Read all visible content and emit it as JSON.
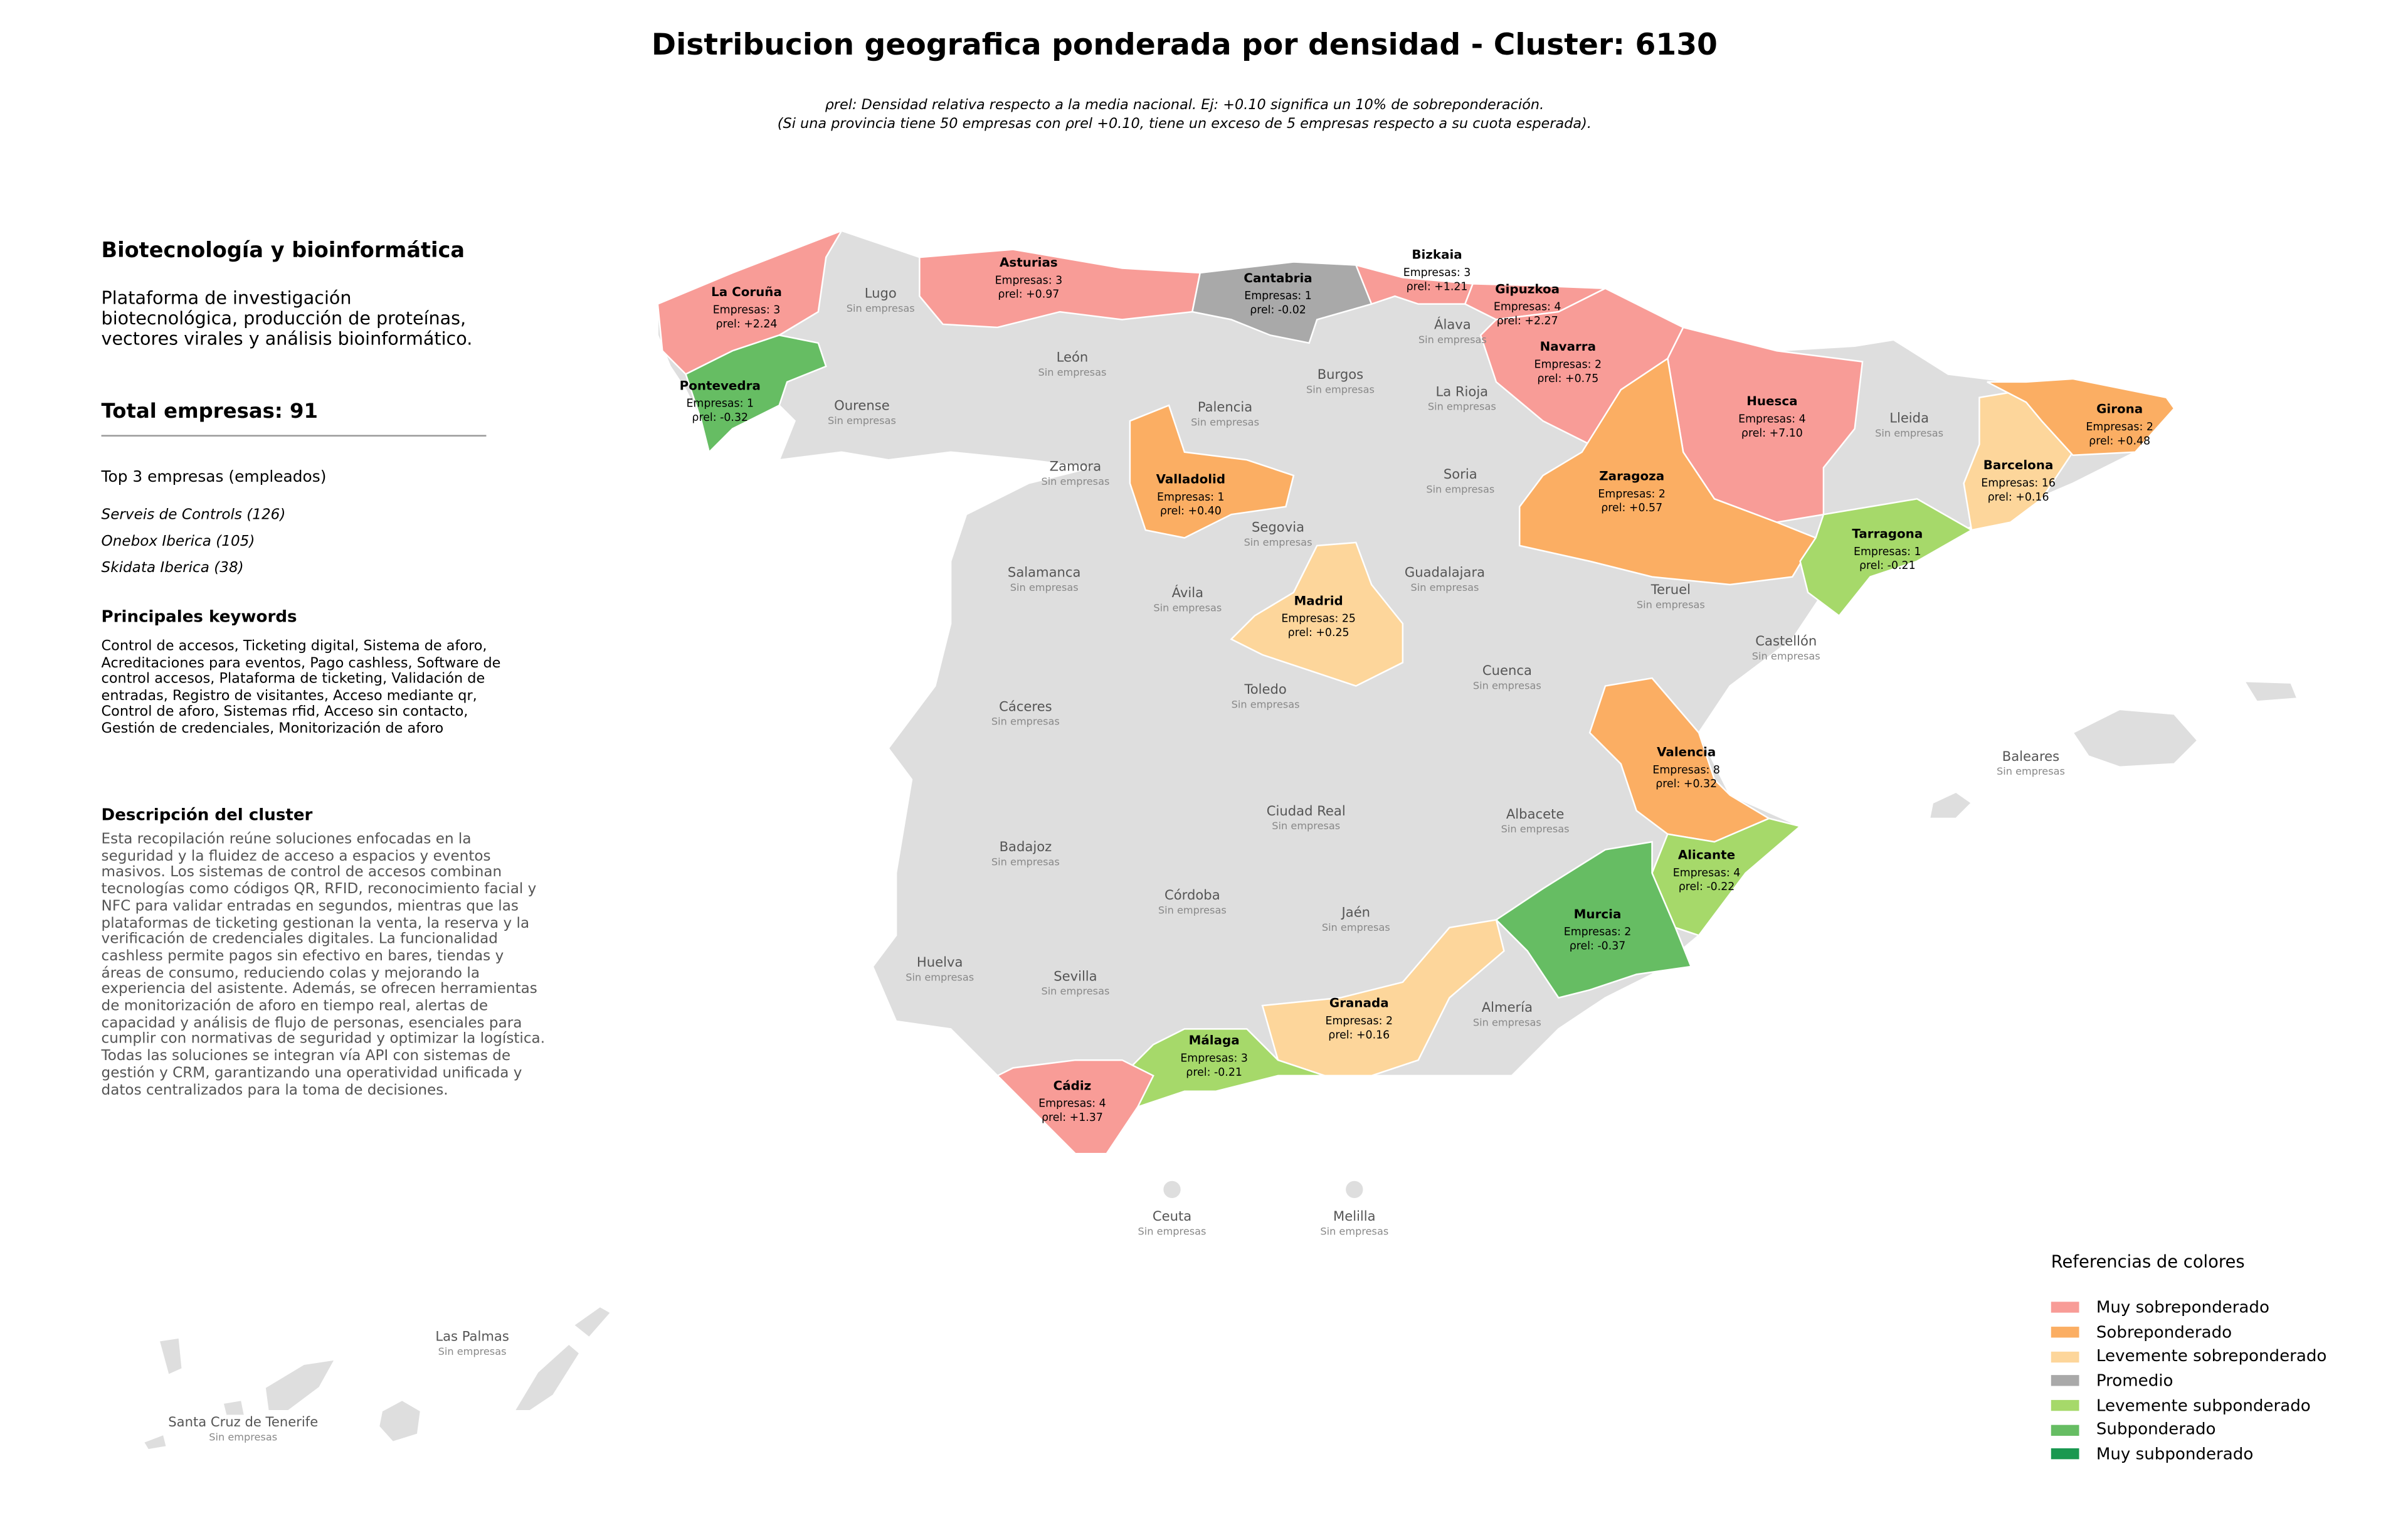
{
  "header": {
    "title": "Distribucion geografica ponderada por densidad - Cluster: 6130",
    "subtitle": [
      "ρrel: Densidad relativa respecto a la media nacional. Ej: +0.10 significa un 10% de sobreponderación.",
      "(Si una provincia tiene 50 empresas con ρrel +0.10, tiene un exceso de 5 empresas respecto a su cuota esperada)."
    ]
  },
  "sidebar": {
    "sector": "Biotecnología y bioinformática",
    "sector_description": "Plataforma de investigación biotecnológica, producción de proteínas, vectores virales y análisis bioinformático.",
    "total": "Total empresas: 91",
    "top_title": "Top 3 empresas (empleados)",
    "top": [
      "Serveis de Controls (126)",
      "Onebox Iberica (105)",
      "Skidata Iberica (38)"
    ],
    "keywords_title": "Principales keywords",
    "keywords": "Control de accesos, Ticketing digital, Sistema de aforo, Acreditaciones para eventos, Pago cashless, Software de control accesos, Plataforma de ticketing, Validación de entradas, Registro de visitantes, Acceso mediante qr, Control de aforo, Sistemas rfid, Acceso sin contacto, Gestión de credenciales, Monitorización de aforo",
    "description_title": "Descripción del cluster",
    "description": "Esta recopilación reúne soluciones enfocadas en la seguridad y la fluidez de acceso a espacios y eventos masivos. Los sistemas de control de accesos combinan tecnologías como códigos QR, RFID, reconocimiento facial y NFC para validar entradas en segundos, mientras que las plataformas de ticketing gestionan la venta, la reserva y la verificación de credenciales digitales. La funcionalidad cashless permite pagos sin efectivo en bares, tiendas y áreas de consumo, reduciendo colas y mejorando la experiencia del asistente. Además, se ofrecen herramientas de monitorización de aforo en tiempo real, alertas de capacidad y análisis de flujo de personas, esenciales para cumplir con normativas de seguridad y optimizar la logística. Todas las soluciones se integran vía API con sistemas de gestión y CRM, garantizando una operatividad unificada y datos centralizados para la toma de decisiones."
  },
  "provinces": [
    {
      "name": "La Coruña",
      "color": "#f89c97",
      "empresas": "Empresas: 3",
      "rho": "ρrel: +2.24"
    },
    {
      "name": "Pontevedra",
      "color": "#66bd63",
      "empresas": "Empresas: 1",
      "rho": "ρrel: -0.32"
    },
    {
      "name": "Asturias",
      "color": "#f89c97",
      "empresas": "Empresas: 3",
      "rho": "ρrel: +0.97"
    },
    {
      "name": "Cantabria",
      "color": "#a9a9a9",
      "empresas": "Empresas: 1",
      "rho": "ρrel: -0.02"
    },
    {
      "name": "Bizkaia",
      "color": "#f89c97",
      "empresas": "Empresas: 3",
      "rho": "ρrel: +1.21"
    },
    {
      "name": "Gipuzkoa",
      "color": "#f89c97",
      "empresas": "Empresas: 4",
      "rho": "ρrel: +2.27"
    },
    {
      "name": "Navarra",
      "color": "#f89c97",
      "empresas": "Empresas: 2",
      "rho": "ρrel: +0.75"
    },
    {
      "name": "Huesca",
      "color": "#f89c97",
      "empresas": "Empresas: 4",
      "rho": "ρrel: +7.10"
    },
    {
      "name": "Zaragoza",
      "color": "#fbae63",
      "empresas": "Empresas: 2",
      "rho": "ρrel: +0.57"
    },
    {
      "name": "Valladolid",
      "color": "#fbae63",
      "empresas": "Empresas: 1",
      "rho": "ρrel: +0.40"
    },
    {
      "name": "Madrid",
      "color": "#fdd69b",
      "empresas": "Empresas: 25",
      "rho": "ρrel: +0.25"
    },
    {
      "name": "Barcelona",
      "color": "#fdd69b",
      "empresas": "Empresas: 16",
      "rho": "ρrel: +0.16"
    },
    {
      "name": "Girona",
      "color": "#fbae63",
      "empresas": "Empresas: 2",
      "rho": "ρrel: +0.48"
    },
    {
      "name": "Tarragona",
      "color": "#a6d96a",
      "empresas": "Empresas: 1",
      "rho": "ρrel: -0.21"
    },
    {
      "name": "Valencia",
      "color": "#fbae63",
      "empresas": "Empresas: 8",
      "rho": "ρrel: +0.32"
    },
    {
      "name": "Alicante",
      "color": "#a6d96a",
      "empresas": "Empresas: 4",
      "rho": "ρrel: -0.22"
    },
    {
      "name": "Murcia",
      "color": "#66bd63",
      "empresas": "Empresas: 2",
      "rho": "ρrel: -0.37"
    },
    {
      "name": "Granada",
      "color": "#fdd69b",
      "empresas": "Empresas: 2",
      "rho": "ρrel: +0.16"
    },
    {
      "name": "Málaga",
      "color": "#a6d96a",
      "empresas": "Empresas: 3",
      "rho": "ρrel: -0.21"
    },
    {
      "name": "Cádiz",
      "color": "#f89c97",
      "empresas": "Empresas: 4",
      "rho": "ρrel: +1.37"
    },
    {
      "name": "Lugo",
      "note": "Sin empresas"
    },
    {
      "name": "Ourense",
      "note": "Sin empresas"
    },
    {
      "name": "León",
      "note": "Sin empresas"
    },
    {
      "name": "Palencia",
      "note": "Sin empresas"
    },
    {
      "name": "Burgos",
      "note": "Sin empresas"
    },
    {
      "name": "Álava",
      "note": "Sin empresas"
    },
    {
      "name": "La Rioja",
      "note": "Sin empresas"
    },
    {
      "name": "Soria",
      "note": "Sin empresas"
    },
    {
      "name": "Zamora",
      "note": "Sin empresas"
    },
    {
      "name": "Lleida",
      "note": "Sin empresas"
    },
    {
      "name": "Segovia",
      "note": "Sin empresas"
    },
    {
      "name": "Salamanca",
      "note": "Sin empresas"
    },
    {
      "name": "Ávila",
      "note": "Sin empresas"
    },
    {
      "name": "Guadalajara",
      "note": "Sin empresas"
    },
    {
      "name": "Teruel",
      "note": "Sin empresas"
    },
    {
      "name": "Castellón",
      "note": "Sin empresas"
    },
    {
      "name": "Cuenca",
      "note": "Sin empresas"
    },
    {
      "name": "Cáceres",
      "note": "Sin empresas"
    },
    {
      "name": "Toledo",
      "note": "Sin empresas"
    },
    {
      "name": "Ciudad Real",
      "note": "Sin empresas"
    },
    {
      "name": "Albacete",
      "note": "Sin empresas"
    },
    {
      "name": "Badajoz",
      "note": "Sin empresas"
    },
    {
      "name": "Córdoba",
      "note": "Sin empresas"
    },
    {
      "name": "Jaén",
      "note": "Sin empresas"
    },
    {
      "name": "Huelva",
      "note": "Sin empresas"
    },
    {
      "name": "Sevilla",
      "note": "Sin empresas"
    },
    {
      "name": "Almería",
      "note": "Sin empresas"
    },
    {
      "name": "Baleares",
      "note": "Sin empresas"
    },
    {
      "name": "Ceuta",
      "note": "Sin empresas"
    },
    {
      "name": "Melilla",
      "note": "Sin empresas"
    },
    {
      "name": "Las Palmas",
      "note": "Sin empresas"
    },
    {
      "name": "Santa Cruz de Tenerife",
      "note": "Sin empresas"
    }
  ],
  "legend": {
    "title": "Referencias de colores",
    "items": [
      {
        "name": "Muy sobreponderado",
        "color": "#f89c97"
      },
      {
        "name": "Sobreponderado",
        "color": "#fbae63"
      },
      {
        "name": "Levemente sobreponderado",
        "color": "#fdd69b"
      },
      {
        "name": "Promedio",
        "color": "#a9a9a9"
      },
      {
        "name": "Levemente subponderado",
        "color": "#a6d96a"
      },
      {
        "name": "Subponderado",
        "color": "#66bd63"
      },
      {
        "name": "Muy subponderado",
        "color": "#1a9850"
      }
    ]
  }
}
